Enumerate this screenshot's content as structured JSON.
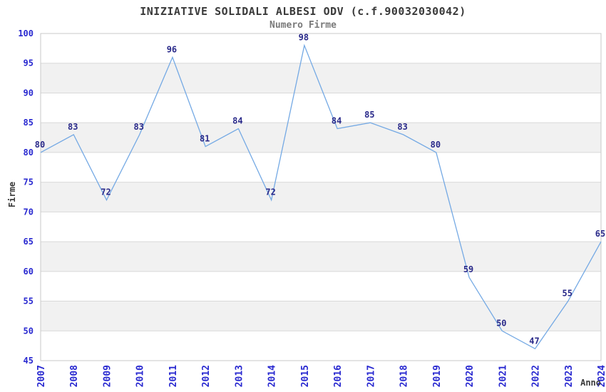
{
  "chart_data": {
    "type": "line",
    "title": "INIZIATIVE SOLIDALI ALBESI ODV (c.f.90032030042)",
    "subtitle": "Numero Firme",
    "xlabel": "Anno",
    "ylabel": "Firme",
    "categories": [
      "2007",
      "2008",
      "2009",
      "2010",
      "2011",
      "2012",
      "2013",
      "2014",
      "2015",
      "2016",
      "2017",
      "2018",
      "2019",
      "2020",
      "2021",
      "2022",
      "2023",
      "2024"
    ],
    "values": [
      80,
      83,
      72,
      83,
      96,
      81,
      84,
      72,
      98,
      84,
      85,
      83,
      80,
      59,
      50,
      47,
      55,
      65
    ],
    "ylim": [
      45,
      100
    ],
    "ytick_step": 5,
    "grid": true,
    "legend_position": "none",
    "point_labels_shown": true,
    "colors": {
      "line": "#74a9e4",
      "point_label": "#2a2a8a",
      "tick_label": "#2828d0",
      "title": "#3a3a3a",
      "subtitle": "#7a7a7a",
      "axis_title": "#3a3a3a",
      "band_white": "#ffffff",
      "band_gray": "#f1f1f1",
      "gridline": "#d9d9d9",
      "border": "#c9c9c9"
    }
  }
}
